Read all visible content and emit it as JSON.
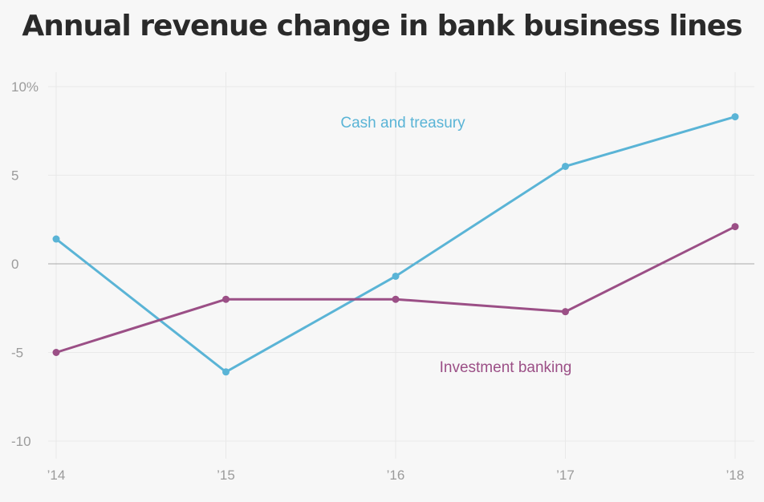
{
  "title": "Annual revenue change in bank business lines",
  "chart_data": {
    "type": "line",
    "title": "Annual revenue change in bank business lines",
    "x": [
      "’14",
      "’15",
      "’16",
      "’17",
      "’18"
    ],
    "y_ticks": [
      "10%",
      "5",
      "0",
      "-5",
      "-10"
    ],
    "y_tick_values": [
      10,
      5,
      0,
      -5,
      -10
    ],
    "ylim": [
      -10,
      10
    ],
    "grid": true,
    "series": [
      {
        "name": "Cash and treasury",
        "color": "#5ab4d6",
        "values": [
          1.4,
          -6.1,
          -0.7,
          5.5,
          8.3
        ]
      },
      {
        "name": "Investment banking",
        "color": "#9b4f86",
        "values": [
          -5.0,
          -2.0,
          -2.0,
          -2.7,
          2.1
        ]
      }
    ]
  }
}
